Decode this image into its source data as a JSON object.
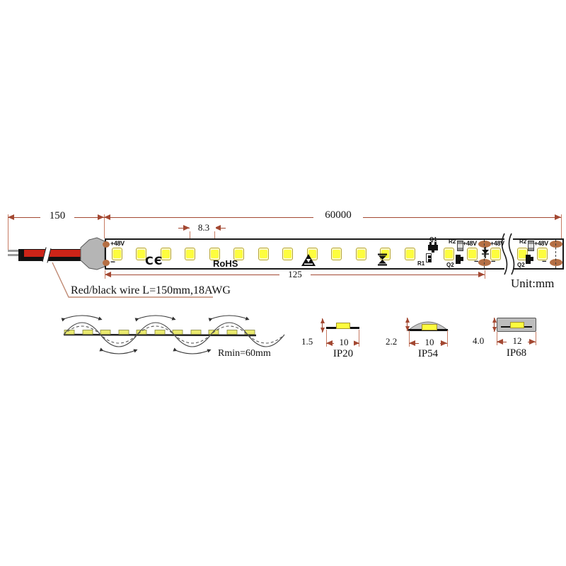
{
  "unit_label": "Unit:mm",
  "dimensions": {
    "wire": "150",
    "total": "60000",
    "pitch": "8.3",
    "cut": "125"
  },
  "wire_note": "Red/black wire L=150mm,18AWG",
  "bend_radius": "Rmin=60mm",
  "strip": {
    "voltage": "+48V",
    "minus": "−",
    "ce_mark": "CЄ",
    "rohs": "RoHS",
    "q1": "Q1",
    "r1": "R1",
    "r2": "R2",
    "q2": "Q2"
  },
  "cross_sections": [
    {
      "ip": "IP20",
      "height": "1.5",
      "width": "10"
    },
    {
      "ip": "IP54",
      "height": "2.2",
      "width": "10"
    },
    {
      "ip": "IP68",
      "height": "4.0",
      "width": "12"
    }
  ],
  "colors": {
    "dimension_line": "#a34832",
    "solder_pad": "#b56f44",
    "led_yellow": "#fdfd3e",
    "wire_red": "#cc2418",
    "housing_gray": "#bdbdbd"
  }
}
